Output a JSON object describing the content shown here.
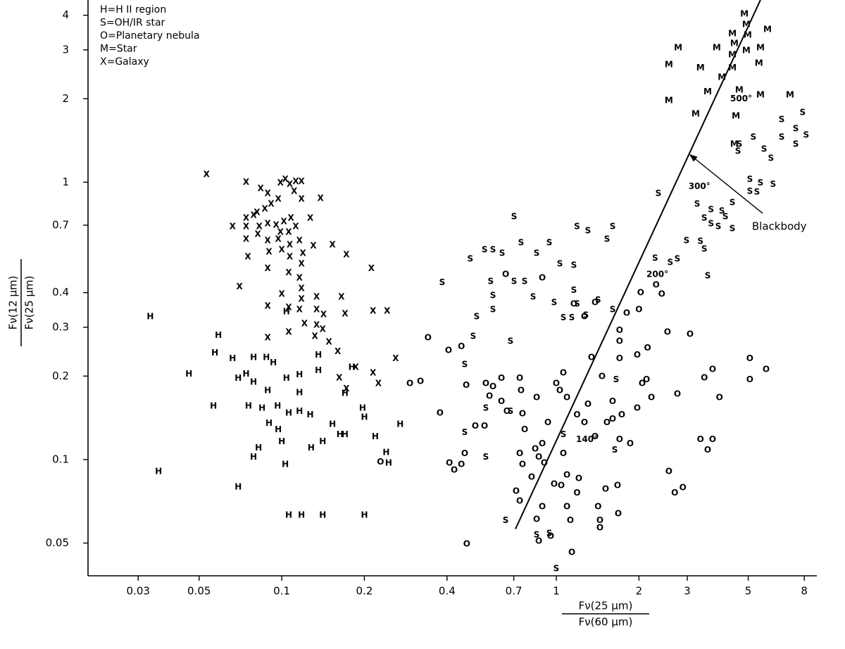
{
  "chart_data": {
    "type": "scatter",
    "xscale": "log",
    "yscale": "log",
    "color": "#000000",
    "xlim": [
      0.0197,
      8.89
    ],
    "ylim": [
      0.0381,
      4.54
    ],
    "xticks": [
      0.03,
      0.05,
      0.1,
      0.2,
      0.4,
      0.7,
      1,
      2,
      3,
      5,
      8
    ],
    "yticks": [
      0.05,
      0.1,
      0.2,
      0.3,
      0.4,
      0.7,
      1,
      2,
      3,
      4
    ],
    "xlabel": {
      "numerator": "Fν(25 μm)",
      "denominator": "Fν(60 μm)"
    },
    "ylabel": {
      "numerator": "Fν(12 μm)",
      "denominator": "Fν(25 μm)"
    },
    "series": [
      {
        "name": "H=H II region",
        "marker": "H",
        "x": [
          0.0332,
          0.0356,
          0.0459,
          0.0564,
          0.0571,
          0.0588,
          0.0662,
          0.0694,
          0.0694,
          0.0757,
          0.0789,
          0.0789,
          0.0823,
          0.0848,
          0.0879,
          0.0899,
          0.0932,
          0.0966,
          0.0971,
          0.1,
          0.103,
          0.104,
          0.104,
          0.106,
          0.116,
          0.116,
          0.116,
          0.127,
          0.128,
          0.136,
          0.141,
          0.153,
          0.163,
          0.17,
          0.17,
          0.18,
          0.197,
          0.2,
          0.219,
          0.24,
          0.245,
          0.27,
          0.106,
          0.118,
          0.141,
          0.2,
          0.0742,
          0.0889,
          0.079,
          0.136
        ],
        "y": [
          0.327,
          0.0906,
          0.203,
          0.156,
          0.242,
          0.28,
          0.231,
          0.0796,
          0.196,
          0.156,
          0.19,
          0.102,
          0.11,
          0.153,
          0.233,
          0.135,
          0.223,
          0.156,
          0.128,
          0.116,
          0.096,
          0.341,
          0.196,
          0.147,
          0.202,
          0.174,
          0.149,
          0.145,
          0.11,
          0.209,
          0.116,
          0.134,
          0.123,
          0.123,
          0.173,
          0.215,
          0.153,
          0.142,
          0.121,
          0.106,
          0.097,
          0.134,
          0.063,
          0.063,
          0.063,
          0.063,
          0.203,
          0.177,
          0.233,
          0.238
        ]
      },
      {
        "name": "S=OH/IR star",
        "marker": "S",
        "x": [
          0.702,
          1.19,
          1.304,
          1.604,
          1.53,
          0.548,
          0.486,
          0.588,
          0.635,
          0.744,
          0.848,
          0.943,
          1.03,
          1.159,
          0.384,
          0.577,
          0.702,
          0.767,
          0.588,
          0.823,
          0.982,
          1.159,
          1.19,
          1.42,
          1.604,
          1.061,
          1.139,
          1.281,
          0.513,
          0.588,
          0.498,
          0.681,
          0.464,
          0.554,
          0.681,
          0.554,
          0.464,
          0.654,
          0.943,
          0.848,
          1,
          2.354,
          3.26,
          3.66,
          4.01,
          4.38,
          4.13,
          4.38,
          3.46,
          3.66,
          3.89,
          2.98,
          3.35,
          3.46,
          2.29,
          2.6,
          2.76,
          3.56,
          6.62,
          7.89,
          7.45,
          8.13,
          6.62,
          7.45,
          5.22,
          4.59,
          5.71,
          6.05,
          5.07,
          5.54,
          6.16,
          5.07,
          5.38,
          1.633,
          1.061,
          1.652,
          4.64
        ],
        "y": [
          0.751,
          0.692,
          0.668,
          0.692,
          0.623,
          0.571,
          0.529,
          0.571,
          0.554,
          0.605,
          0.554,
          0.605,
          0.508,
          0.502,
          0.434,
          0.439,
          0.439,
          0.439,
          0.39,
          0.386,
          0.368,
          0.407,
          0.364,
          0.375,
          0.347,
          0.324,
          0.324,
          0.331,
          0.327,
          0.347,
          0.278,
          0.267,
          0.22,
          0.153,
          0.149,
          0.102,
          0.125,
          0.0602,
          0.0541,
          0.0535,
          0.0404,
          0.911,
          0.834,
          0.796,
          0.787,
          0.844,
          0.751,
          0.68,
          0.742,
          0.708,
          0.692,
          0.616,
          0.612,
          0.574,
          0.532,
          0.514,
          0.529,
          0.46,
          1.683,
          1.783,
          1.559,
          1.479,
          1.454,
          1.371,
          1.454,
          1.293,
          1.316,
          1.22,
          1.024,
          0.994,
          0.983,
          0.927,
          0.921,
          0.108,
          0.123,
          0.194,
          1.371
        ]
      },
      {
        "name": "O=Planetary nebula",
        "marker": "O",
        "x": [
          0.341,
          0.293,
          0.32,
          0.377,
          0.405,
          0.451,
          0.408,
          0.425,
          0.451,
          0.464,
          0.47,
          0.472,
          0.507,
          0.548,
          0.554,
          0.588,
          0.631,
          0.571,
          0.631,
          0.661,
          0.736,
          0.744,
          0.753,
          0.767,
          0.736,
          0.753,
          0.838,
          0.863,
          0.848,
          0.889,
          0.904,
          0.932,
          1,
          1.03,
          1.061,
          1.093,
          1.19,
          1.266,
          1.384,
          1.53,
          1.604,
          1.732,
          1.858,
          1.972,
          2.055,
          2.13,
          2.22,
          1.304,
          1.343,
          1.468,
          1.604,
          1.7,
          1.805,
          2.03,
          2,
          2.31,
          2.42,
          2.54,
          2.76,
          2.57,
          2.7,
          2.89,
          3.35,
          3.56,
          3.71,
          3.46,
          3.71,
          3.93,
          5.07,
          5.07,
          5.81,
          1.061,
          1.093,
          1.208,
          1.19,
          1.093,
          1.125,
          0.954,
          1.139,
          0.982,
          1.042,
          1.42,
          1.442,
          1.442,
          1.512,
          1.671,
          1.681,
          1.7,
          0.654,
          0.889,
          1.159,
          1.266,
          1.384,
          1.7,
          1.972,
          2.15,
          3.07,
          1.7,
          0.889,
          0.813,
          0.714,
          0.736,
          0.848,
          0.863,
          0.229
        ],
        "y": [
          0.275,
          0.188,
          0.191,
          0.147,
          0.247,
          0.255,
          0.097,
          0.0916,
          0.096,
          0.105,
          0.185,
          0.0496,
          0.132,
          0.132,
          0.188,
          0.183,
          0.196,
          0.169,
          0.162,
          0.149,
          0.196,
          0.177,
          0.146,
          0.128,
          0.105,
          0.096,
          0.109,
          0.102,
          0.167,
          0.114,
          0.097,
          0.136,
          0.188,
          0.177,
          0.205,
          0.167,
          0.145,
          0.136,
          0.121,
          0.136,
          0.162,
          0.145,
          0.114,
          0.153,
          0.188,
          0.194,
          0.167,
          0.158,
          0.233,
          0.199,
          0.14,
          0.267,
          0.337,
          0.399,
          0.347,
          0.426,
          0.395,
          0.288,
          0.172,
          0.0906,
          0.0757,
          0.0791,
          0.118,
          0.108,
          0.118,
          0.197,
          0.211,
          0.167,
          0.231,
          0.194,
          0.211,
          0.105,
          0.088,
          0.0854,
          0.0757,
          0.0676,
          0.0602,
          0.0529,
          0.0462,
          0.0815,
          0.0806,
          0.0676,
          0.0602,
          0.0567,
          0.0782,
          0.0806,
          0.0637,
          0.118,
          0.465,
          0.452,
          0.364,
          0.327,
          0.368,
          0.292,
          0.238,
          0.252,
          0.283,
          0.231,
          0.0676,
          0.0864,
          0.0769,
          0.0708,
          0.0608,
          0.0508,
          0.098
        ]
      },
      {
        "name": "M=Star",
        "marker": "M",
        "x": [
          2.78,
          3.84,
          2.57,
          3.35,
          4.38,
          4.45,
          4.98,
          4.38,
          4.92,
          5.54,
          5.88,
          4.84,
          4.92,
          4.38,
          5.47,
          4.01,
          4.64,
          3.56,
          5.54,
          7.1,
          2.57,
          4.51,
          3.22,
          4.45
        ],
        "y": [
          3.05,
          3.05,
          2.65,
          2.58,
          3.43,
          3.16,
          3.39,
          2.88,
          2.98,
          3.05,
          3.55,
          4.04,
          3.7,
          2.58,
          2.68,
          2.39,
          2.15,
          2.12,
          2.06,
          2.06,
          1.97,
          1.73,
          1.76,
          1.371
        ]
      },
      {
        "name": "X=Galaxy",
        "marker": "X",
        "x": [
          0.0532,
          0.0742,
          0.0838,
          0.0889,
          0.0989,
          0.103,
          0.107,
          0.1125,
          0.118,
          0.111,
          0.0971,
          0.0915,
          0.0868,
          0.0813,
          0.0742,
          0.079,
          0.0662,
          0.0742,
          0.0828,
          0.0889,
          0.0954,
          0.1018,
          0.108,
          0.118,
          0.127,
          0.1384,
          0.0989,
          0.106,
          0.1125,
          0.0742,
          0.0818,
          0.0889,
          0.0971,
          0.107,
          0.116,
          0.1304,
          0.153,
          0.172,
          0.0753,
          0.0899,
          0.1,
          0.107,
          0.1194,
          0.0889,
          0.106,
          0.118,
          0.116,
          0.0702,
          0.118,
          0.1,
          0.134,
          0.165,
          0.118,
          0.0889,
          0.106,
          0.116,
          0.134,
          0.142,
          0.17,
          0.212,
          0.215,
          0.242,
          0.121,
          0.134,
          0.106,
          0.141,
          0.132,
          0.1486,
          0.0889,
          0.16,
          0.186,
          0.215,
          0.225,
          0.26,
          0.162,
          0.172
        ],
        "y": [
          1.066,
          1,
          0.949,
          0.911,
          0.994,
          1.024,
          0.983,
          1.006,
          1.006,
          0.927,
          0.869,
          0.834,
          0.801,
          0.778,
          0.742,
          0.76,
          0.692,
          0.692,
          0.692,
          0.708,
          0.7,
          0.721,
          0.742,
          0.869,
          0.742,
          0.874,
          0.66,
          0.66,
          0.692,
          0.623,
          0.649,
          0.616,
          0.623,
          0.594,
          0.616,
          0.588,
          0.594,
          0.548,
          0.538,
          0.561,
          0.571,
          0.538,
          0.554,
          0.488,
          0.471,
          0.508,
          0.452,
          0.419,
          0.414,
          0.395,
          0.386,
          0.386,
          0.379,
          0.357,
          0.353,
          0.347,
          0.347,
          0.333,
          0.335,
          0.488,
          0.343,
          0.343,
          0.309,
          0.305,
          0.288,
          0.295,
          0.278,
          0.265,
          0.275,
          0.245,
          0.215,
          0.205,
          0.188,
          0.231,
          0.197,
          0.18
        ]
      }
    ],
    "blackbody": {
      "name": "Blackbody",
      "x": [
        0.71,
        5.54
      ],
      "y": [
        0.0562,
        4.54
      ],
      "label_x": 5.16,
      "label_y": 0.692,
      "arrow": {
        "x": [
          5.64,
          3.07
        ],
        "y": [
          0.773,
          1.256
        ]
      },
      "temperatures": [
        {
          "label": "500°",
          "x": 4.3,
          "y": 2.0
        },
        {
          "label": "300°",
          "x": 3.03,
          "y": 0.966
        },
        {
          "label": "200°",
          "x": 2.13,
          "y": 0.465
        },
        {
          "label": "140°",
          "x": 1.18,
          "y": 0.118
        }
      ]
    }
  }
}
